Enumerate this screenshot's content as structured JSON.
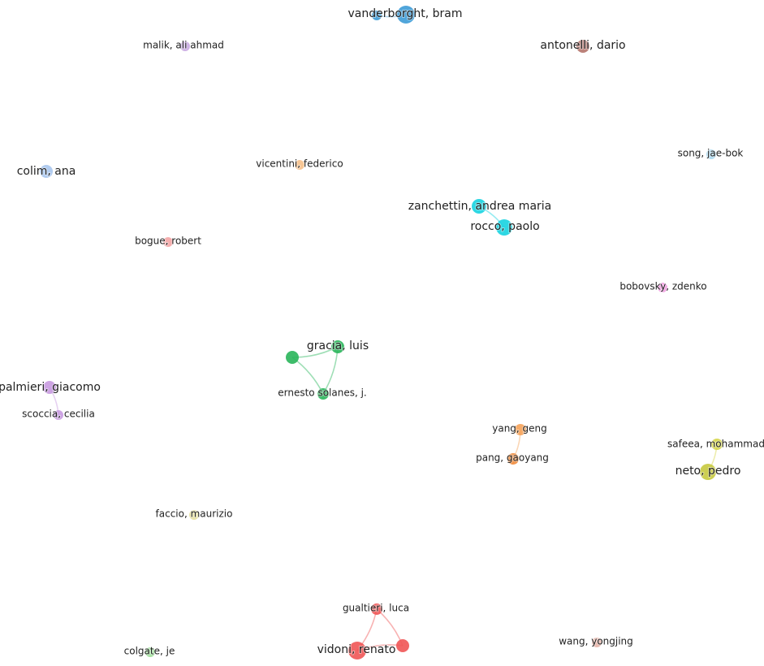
{
  "nodes": [
    {
      "label": "vanderborght, bram"
    },
    {
      "label": "malik, ali ahmad"
    },
    {
      "label": "antonelli, dario"
    },
    {
      "label": "colim, ana"
    },
    {
      "label": "vicentini, federico"
    },
    {
      "label": "song, jae-bok"
    },
    {
      "label": "zanchettin, andrea maria"
    },
    {
      "label": "rocco, paolo"
    },
    {
      "label": "bogue, robert"
    },
    {
      "label": "bobovsky, zdenko"
    },
    {
      "label": "gracia, luis"
    },
    {
      "label": "ernesto solanes, j."
    },
    {
      "label": "palmieri, giacomo"
    },
    {
      "label": "scoccia, cecilia"
    },
    {
      "label": "yang, geng"
    },
    {
      "label": "pang, gaoyang"
    },
    {
      "label": "safeea, mohammad"
    },
    {
      "label": "neto, pedro"
    },
    {
      "label": "faccio, maurizio"
    },
    {
      "label": "gualtieri, luca"
    },
    {
      "label": "vidoni, renato"
    },
    {
      "label": "wang, yongjing"
    },
    {
      "label": "colgate, je"
    }
  ]
}
